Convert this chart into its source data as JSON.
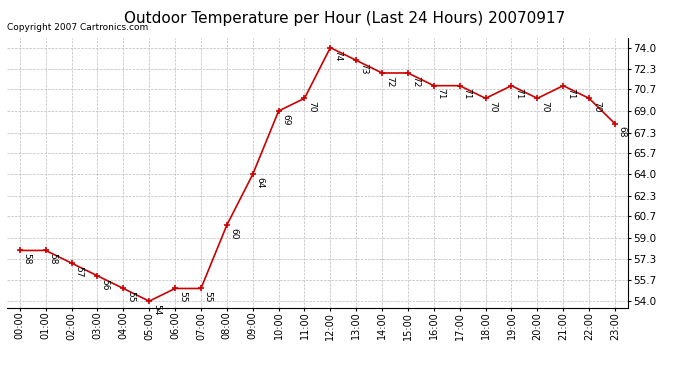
{
  "title": "Outdoor Temperature per Hour (Last 24 Hours) 20070917",
  "copyright_text": "Copyright 2007 Cartronics.com",
  "hours": [
    "00:00",
    "01:00",
    "02:00",
    "03:00",
    "04:00",
    "05:00",
    "06:00",
    "07:00",
    "08:00",
    "09:00",
    "10:00",
    "11:00",
    "12:00",
    "13:00",
    "14:00",
    "15:00",
    "16:00",
    "17:00",
    "18:00",
    "19:00",
    "20:00",
    "21:00",
    "22:00",
    "23:00"
  ],
  "temperatures": [
    58,
    58,
    57,
    56,
    55,
    54,
    55,
    55,
    60,
    64,
    69,
    70,
    74,
    73,
    72,
    72,
    71,
    71,
    70,
    71,
    70,
    71,
    70,
    68
  ],
  "line_color": "#cc0000",
  "marker_color": "#cc0000",
  "bg_color": "#ffffff",
  "grid_color": "#bbbbbb",
  "title_fontsize": 11,
  "copyright_fontsize": 6.5,
  "tick_fontsize": 7,
  "ytick_fontsize": 7.5,
  "data_label_fontsize": 6.5,
  "yticks": [
    54.0,
    55.7,
    57.3,
    59.0,
    60.7,
    62.3,
    64.0,
    65.7,
    67.3,
    69.0,
    70.7,
    72.3,
    74.0
  ],
  "ylim": [
    53.5,
    74.8
  ],
  "xlim": [
    -0.5,
    23.5
  ]
}
